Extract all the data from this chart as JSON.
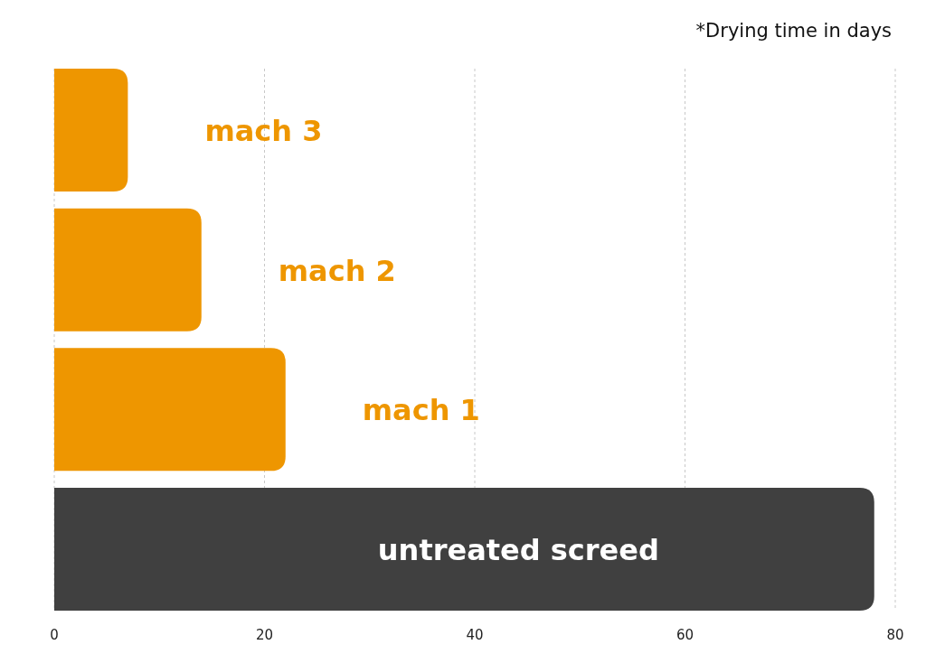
{
  "chart_data": {
    "type": "bar",
    "orientation": "horizontal",
    "title": "*Drying time in days",
    "categories": [
      "mach 3",
      "mach 2",
      "mach 1",
      "untreated screed"
    ],
    "values": [
      7,
      14,
      22,
      78
    ],
    "colors": [
      "#ee9600",
      "#ee9600",
      "#ee9600",
      "#404040"
    ],
    "xlim": [
      0,
      80
    ],
    "xticks": [
      0,
      20,
      40,
      60,
      80
    ],
    "grid": "x"
  }
}
